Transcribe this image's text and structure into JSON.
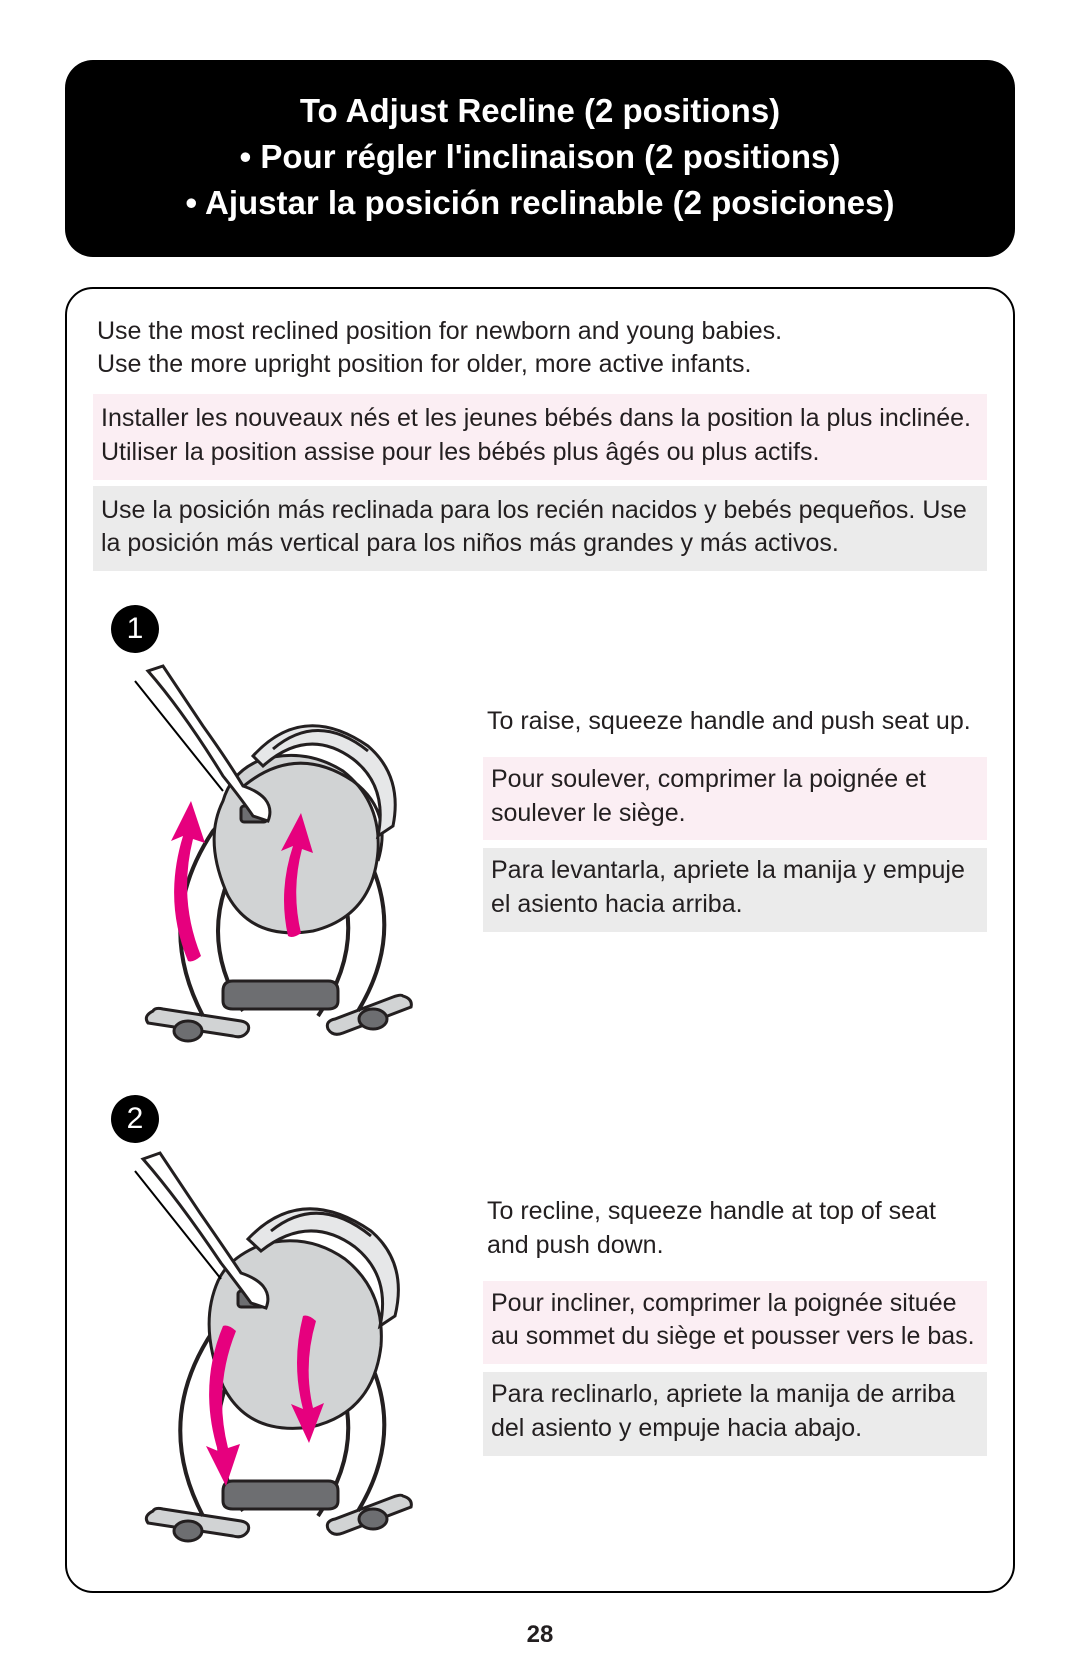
{
  "title": {
    "en": "To Adjust Recline (2 positions)",
    "fr": "• Pour régler l'inclinaison (2 positions)",
    "es": "• Ajustar la posición reclinable (2 posiciones)"
  },
  "intro": {
    "en": "Use the most reclined position for newborn and young babies.\nUse the more upright position for older, more active infants.",
    "fr": "Installer les nouveaux nés et les jeunes bébés dans la position la plus inclinée. Utiliser la position assise pour les bébés plus âgés ou plus actifs.",
    "es": "Use la posición más reclinada para los recién nacidos y bebés pequeños. Use la posición más vertical para los niños más grandes y más activos."
  },
  "steps": [
    {
      "num": "1",
      "en": "To raise, squeeze handle and push seat up.",
      "fr": "Pour soulever, comprimer la poignée et soulever le siège.",
      "es": "Para levantarla, apriete la manija y empuje el asiento hacia arriba.",
      "arrow_direction": "up"
    },
    {
      "num": "2",
      "en": "To recline, squeeze handle at top of seat and push down.",
      "fr": "Pour incliner, comprimer la poignée située au sommet du siège et pousser vers le bas.",
      "es": "Para reclinarlo, apriete la manija de arriba del asiento y empuje hacia abajo.",
      "arrow_direction": "down"
    }
  ],
  "page_number": "28",
  "colors": {
    "title_bg": "#000000",
    "title_text": "#ffffff",
    "text": "#231f20",
    "fr_bg": "#fbeef3",
    "es_bg": "#ebebeb",
    "arrow": "#e6007e",
    "illustration_dark": "#6d6e71",
    "illustration_light": "#d1d3d4",
    "illustration_stroke": "#231f20"
  }
}
